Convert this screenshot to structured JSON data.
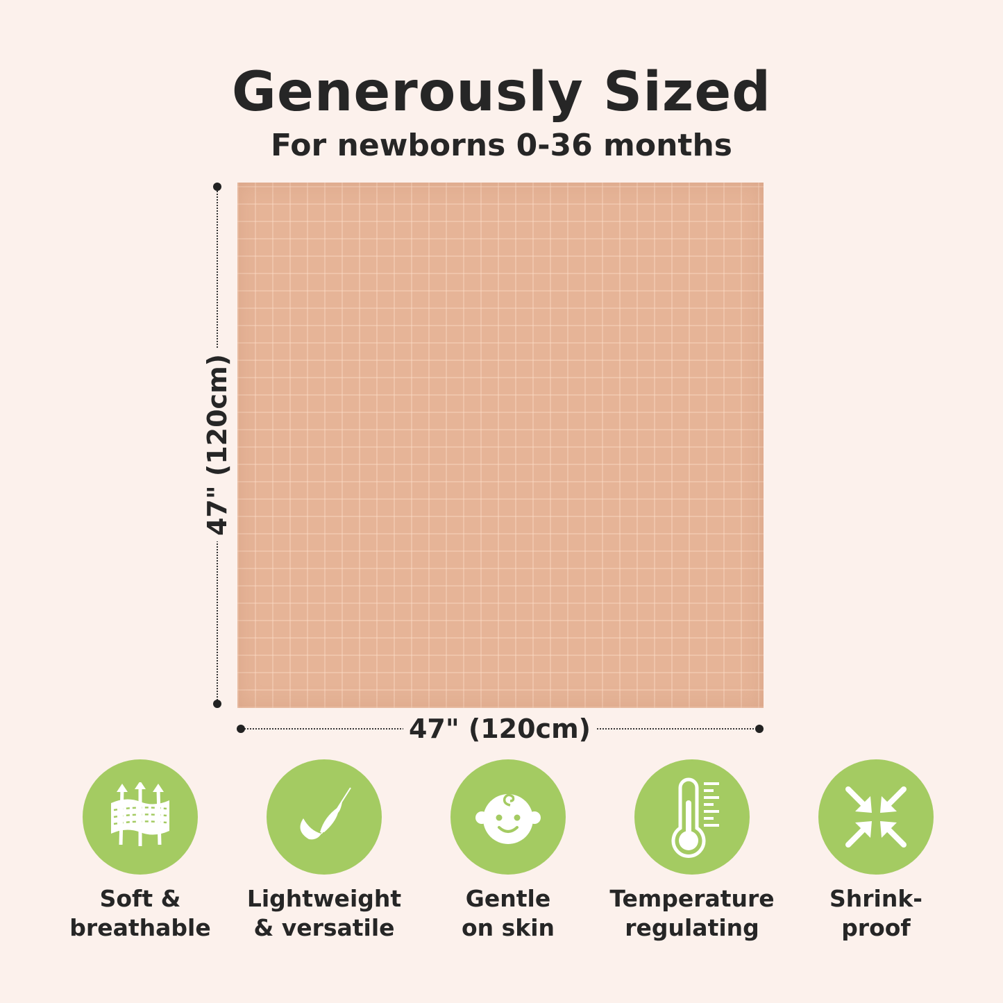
{
  "header": {
    "title": "Generously Sized",
    "subtitle": "For newborns 0-36 months"
  },
  "dimensions": {
    "height_label": "47\" (120cm)",
    "width_label": "47\" (120cm)"
  },
  "colors": {
    "background": "#fcf1ec",
    "accent_green": "#a4cb62",
    "blanket": "#e6b497"
  },
  "features": [
    {
      "icon": "breathable-fabric-icon",
      "line1": "Soft &",
      "line2": "breathable"
    },
    {
      "icon": "feather-icon",
      "line1": "Lightweight",
      "line2": "& versatile"
    },
    {
      "icon": "baby-face-icon",
      "line1": "Gentle",
      "line2": "on skin"
    },
    {
      "icon": "thermometer-icon",
      "line1": "Temperature",
      "line2": "regulating"
    },
    {
      "icon": "shrink-arrows-icon",
      "line1": "Shrink-",
      "line2": "proof"
    }
  ]
}
